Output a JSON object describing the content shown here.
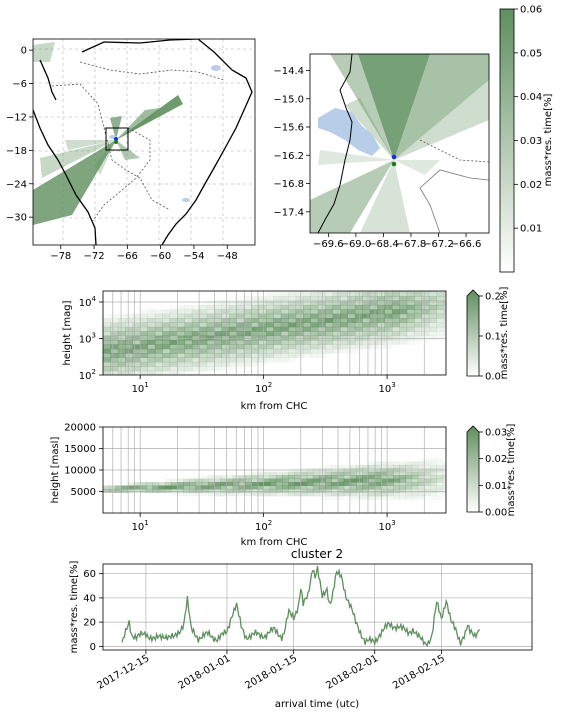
{
  "chart_data": [
    {
      "id": "map_overview",
      "type": "heatmap",
      "title": "",
      "xticks": [
        "−78",
        "−72",
        "−66",
        "−60",
        "−54",
        "−48"
      ],
      "yticks": [
        "0",
        "−6",
        "−12",
        "−18",
        "−24",
        "−30"
      ],
      "x_range": [
        -83,
        -43
      ],
      "y_range": [
        -35,
        2
      ],
      "grid": true,
      "markers": [
        {
          "lon": -67.5,
          "lat": -16.3,
          "color": "#1030e0"
        },
        {
          "lon": -67.5,
          "lat": -16.5,
          "color": "#1a7a1a"
        }
      ]
    },
    {
      "id": "map_zoom",
      "type": "heatmap",
      "xticks": [
        "−69.6",
        "−69.0",
        "−68.4",
        "−67.8",
        "−67.2",
        "−66.6"
      ],
      "yticks": [
        "−14.4",
        "−15.0",
        "−15.6",
        "−16.2",
        "−16.8",
        "−17.4"
      ],
      "x_range": [
        -70.0,
        -66.1
      ],
      "y_range": [
        -17.85,
        -14.05
      ],
      "markers": [
        {
          "lon": -67.72,
          "lat": -16.3,
          "color": "#1030e0"
        },
        {
          "lon": -67.72,
          "lat": -16.5,
          "color": "#1a7a1a"
        }
      ],
      "colorbar": {
        "label": "mass*res. time[%]",
        "ticks": [
          "0.01",
          "0.02",
          "0.03",
          "0.04",
          "0.05",
          "0.06"
        ],
        "range": [
          0,
          0.06
        ]
      }
    },
    {
      "id": "height_mag",
      "type": "heatmap",
      "xlabel": "km from CHC",
      "ylabel": "height [mag]",
      "x_scale": "log",
      "y_scale": "log",
      "xlim": [
        5,
        3000
      ],
      "ylim": [
        100,
        20000
      ],
      "xticks": [
        {
          "text": "10",
          "sup": "1"
        },
        {
          "text": "10",
          "sup": "2"
        },
        {
          "text": "10",
          "sup": "3"
        }
      ],
      "yticks": [
        {
          "text": "10",
          "sup": "2"
        },
        {
          "text": "10",
          "sup": "3"
        },
        {
          "text": "10",
          "sup": "4"
        }
      ],
      "colorbar": {
        "label": "mass*res. time[%]",
        "ticks": [
          "0.0",
          "0.1",
          "0.2"
        ],
        "range": [
          0,
          0.2
        ]
      }
    },
    {
      "id": "height_masl",
      "type": "heatmap",
      "xlabel": "km from CHC",
      "ylabel": "height [masl]",
      "x_scale": "log",
      "xlim": [
        5,
        3000
      ],
      "ylim": [
        0,
        20000
      ],
      "xticks": [
        {
          "text": "10",
          "sup": "1"
        },
        {
          "text": "10",
          "sup": "2"
        },
        {
          "text": "10",
          "sup": "3"
        }
      ],
      "yticks": [
        "5000",
        "10000",
        "15000",
        "20000"
      ],
      "colorbar": {
        "label": "mass*res. time[%]",
        "ticks": [
          "0.00",
          "0.01",
          "0.02",
          "0.03"
        ],
        "range": [
          0,
          0.03
        ]
      }
    },
    {
      "id": "timeseries",
      "type": "line",
      "title": "cluster 2",
      "xlabel": "arrival time (utc)",
      "ylabel": "mass*res. time[%]",
      "ylim": [
        -3,
        68
      ],
      "yticks": [
        "0",
        "20",
        "40",
        "60"
      ],
      "x_range_days": [
        -26,
        64
      ],
      "xticks": [
        {
          "label": "2017-12-15",
          "day": -17
        },
        {
          "label": "2018-01-01",
          "day": 0
        },
        {
          "label": "2018-01-15",
          "day": 14
        },
        {
          "label": "2018-02-01",
          "day": 31
        },
        {
          "label": "2018-02-15",
          "day": 45
        }
      ],
      "series_color": "#5e8f5e",
      "keypoints": [
        [
          -22,
          2
        ],
        [
          -21,
          14
        ],
        [
          -20.5,
          20
        ],
        [
          -20,
          10
        ],
        [
          -19,
          8
        ],
        [
          -17,
          10
        ],
        [
          -15,
          6
        ],
        [
          -13,
          9
        ],
        [
          -11,
          7
        ],
        [
          -10,
          12
        ],
        [
          -9,
          20
        ],
        [
          -8.3,
          38
        ],
        [
          -7.5,
          14
        ],
        [
          -6,
          7
        ],
        [
          -4,
          10
        ],
        [
          -2,
          6
        ],
        [
          0,
          12
        ],
        [
          1,
          26
        ],
        [
          2,
          34
        ],
        [
          3,
          16
        ],
        [
          4,
          8
        ],
        [
          6,
          10
        ],
        [
          8,
          9
        ],
        [
          10,
          14
        ],
        [
          11.5,
          8
        ],
        [
          12,
          11
        ],
        [
          13,
          28
        ],
        [
          14,
          24
        ],
        [
          15,
          34
        ],
        [
          15.5,
          48
        ],
        [
          16,
          34
        ],
        [
          17,
          42
        ],
        [
          18,
          66
        ],
        [
          18.5,
          58
        ],
        [
          19,
          64
        ],
        [
          20,
          40
        ],
        [
          21,
          48
        ],
        [
          21.5,
          36
        ],
        [
          22,
          40
        ],
        [
          23,
          60
        ],
        [
          24,
          58
        ],
        [
          25,
          42
        ],
        [
          26,
          32
        ],
        [
          27,
          20
        ],
        [
          28,
          12
        ],
        [
          29,
          4
        ],
        [
          31,
          4
        ],
        [
          32,
          10
        ],
        [
          33,
          14
        ],
        [
          34,
          18
        ],
        [
          36,
          16
        ],
        [
          38,
          12
        ],
        [
          39,
          14
        ],
        [
          40,
          8
        ],
        [
          42,
          2
        ],
        [
          43,
          8
        ],
        [
          44,
          36
        ],
        [
          45,
          24
        ],
        [
          46,
          38
        ],
        [
          47,
          20
        ],
        [
          48,
          14
        ],
        [
          49,
          4
        ],
        [
          50,
          10
        ],
        [
          50.5,
          16
        ],
        [
          51,
          12
        ],
        [
          52,
          10
        ],
        [
          53,
          14
        ]
      ]
    }
  ]
}
